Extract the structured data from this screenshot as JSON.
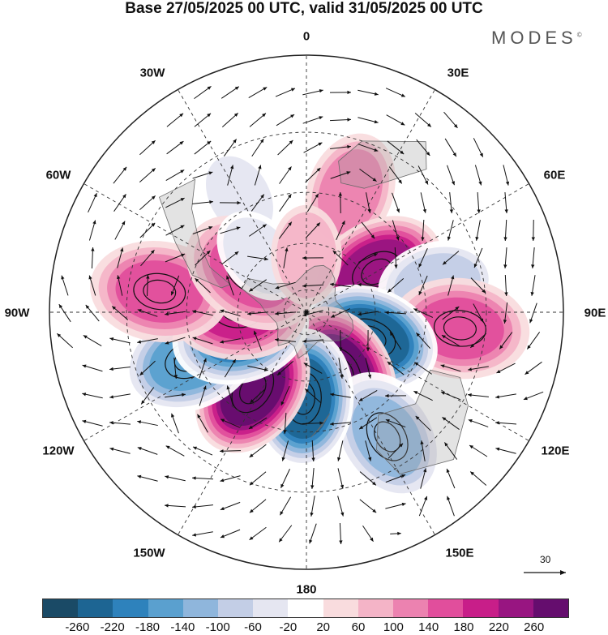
{
  "header": {
    "title": "Base 27/05/2025 00 UTC, valid 31/05/2025 00 UTC",
    "brand": "MODES",
    "brand_mark": "©"
  },
  "map": {
    "projection": "south polar stereographic",
    "longitude_labels": [
      "0",
      "30E",
      "60E",
      "90E",
      "120E",
      "150E",
      "180",
      "150W",
      "120W",
      "90W",
      "60W",
      "30W"
    ],
    "reference_vector": "30",
    "anomaly_centers": [
      {
        "lon": -30,
        "lat": -35,
        "value": -60
      },
      {
        "lon": 20,
        "lat": -37,
        "value": 100
      },
      {
        "lon": 60,
        "lat": -55,
        "value": 220
      },
      {
        "lon": 78,
        "lat": -35,
        "value": -100
      },
      {
        "lon": 96,
        "lat": -28,
        "value": 140
      },
      {
        "lon": 112,
        "lat": -60,
        "value": -260
      },
      {
        "lon": 150,
        "lat": -60,
        "value": 260
      },
      {
        "lon": 147,
        "lat": -30,
        "value": -140
      },
      {
        "lon": -178,
        "lat": -53,
        "value": -260
      },
      {
        "lon": -145,
        "lat": -50,
        "value": 260
      },
      {
        "lon": -112,
        "lat": -38,
        "value": -180
      },
      {
        "lon": -107,
        "lat": -60,
        "value": -220
      },
      {
        "lon": -88,
        "lat": -60,
        "value": 180
      },
      {
        "lon": -82,
        "lat": -30,
        "value": 140
      },
      {
        "lon": -55,
        "lat": -60,
        "value": 140
      },
      {
        "lon": -40,
        "lat": -58,
        "value": -60
      },
      {
        "lon": 0,
        "lat": -65,
        "value": 60
      }
    ]
  },
  "colorbar": {
    "colors": [
      "#1a4a66",
      "#1d6593",
      "#2e82bc",
      "#5aa0cf",
      "#8fb6dc",
      "#c3cee6",
      "#e5e6f1",
      "#ffffff",
      "#f9dcde",
      "#f4b4c7",
      "#ec82b0",
      "#e14e9c",
      "#c81e89",
      "#981581",
      "#650d6e"
    ],
    "ticks": [
      "-260",
      "-220",
      "-180",
      "-140",
      "-100",
      "-60",
      "-20",
      "20",
      "60",
      "100",
      "140",
      "180",
      "220",
      "260"
    ]
  }
}
